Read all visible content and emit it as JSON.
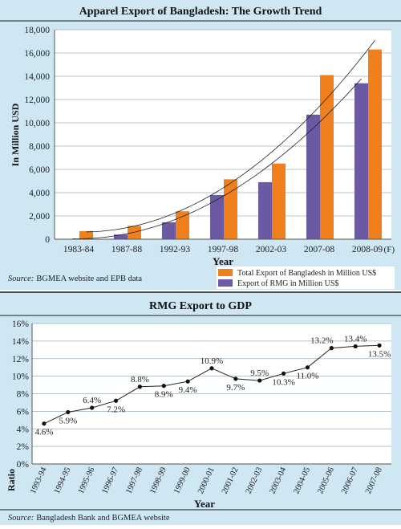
{
  "chart_data": [
    {
      "type": "bar",
      "title": "Apparel Export of Bangladesh: The Growth Trend",
      "xlabel": "Year",
      "ylabel": "In Million USD",
      "ylim": [
        0,
        18000
      ],
      "yticks": [
        "18,000",
        "16,000",
        "14,000",
        "12,000",
        "10,000",
        "8,000",
        "6,000",
        "4,000",
        "2,000",
        "0"
      ],
      "ytick_values": [
        18000,
        16000,
        14000,
        12000,
        10000,
        8000,
        6000,
        4000,
        2000,
        0
      ],
      "categories": [
        "1983-84",
        "1987-88",
        "1992-93",
        "1997-98",
        "2002-03",
        "2007-08",
        "2008-09"
      ],
      "category_note": "(F)",
      "grid": true,
      "legend_position": "bottom-right",
      "series": [
        {
          "name": "Export of RMG in Million US$",
          "color": "#6b5aa3",
          "values": [
            30,
            400,
            1450,
            3800,
            4900,
            10700,
            13400
          ]
        },
        {
          "name": "Total Export of Bangladesh in Million US$",
          "color": "#f07f1e",
          "values": [
            700,
            1150,
            2400,
            5150,
            6500,
            14100,
            16300
          ]
        }
      ],
      "trendlines": 2,
      "source_label": "Source:",
      "source_text": "BGMEA website and EPB data"
    },
    {
      "type": "line",
      "title": "RMG Export to GDP",
      "xlabel": "Year",
      "ylabel": "Ratio",
      "ylim": [
        0,
        16
      ],
      "yticks": [
        "16%",
        "14%",
        "12%",
        "10%",
        "8%",
        "6%",
        "4%",
        "2%",
        "0%"
      ],
      "ytick_values": [
        16,
        14,
        12,
        10,
        8,
        6,
        4,
        2,
        0
      ],
      "x": [
        "1993-94",
        "1994-95",
        "1995-96",
        "1996-97",
        "1997-98",
        "1998-99",
        "1999-00",
        "2000-01",
        "2001-02",
        "2002-03",
        "2003-04",
        "2004-05",
        "2005-06",
        "2006-07",
        "2007-08"
      ],
      "values": [
        4.6,
        5.9,
        6.4,
        7.2,
        8.8,
        8.9,
        9.4,
        10.9,
        9.7,
        9.5,
        10.3,
        11.0,
        13.2,
        13.4,
        13.5
      ],
      "labels": [
        "4.6%",
        "5.9%",
        "6.4%",
        "7.2%",
        "8.8%",
        "8.9%",
        "9.4%",
        "10.9%",
        "9.7%",
        "9.5%",
        "10.3%",
        "11.0%",
        "13.2%",
        "13.4%",
        "13.5%"
      ],
      "grid": true,
      "source_label": "Source:",
      "source_text": "Bangladesh Bank and BGMEA website"
    }
  ],
  "colors": {
    "panel_bg": "#cfe7f3",
    "plot_bg": "#ffffff",
    "title_bg": "#cfe7f3",
    "source_bg": "#cfe7f3",
    "gridline": "#9ab0bf"
  }
}
